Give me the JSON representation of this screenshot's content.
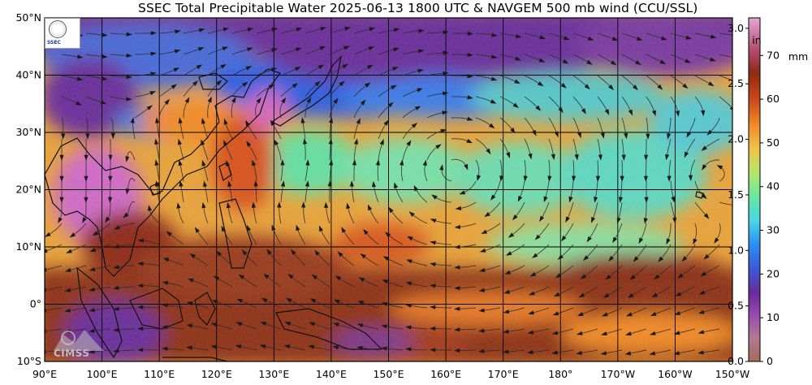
{
  "title": "SSEC Total Precipitable Water  2025-06-13 1800 UTC & NAVGEM 500 mb wind (CCU/SSL)",
  "map": {
    "lat_labels": [
      "50°N",
      "40°N",
      "30°N",
      "20°N",
      "10°N",
      "0°",
      "10°S"
    ],
    "lon_labels": [
      "90°E",
      "100°E",
      "110°E",
      "120°E",
      "130°E",
      "140°E",
      "150°E",
      "160°E",
      "170°E",
      "180°",
      "170°W",
      "160°W",
      "150°W"
    ],
    "lat_range": [
      -10,
      50
    ],
    "lon_range_east": [
      90,
      210
    ]
  },
  "colorbar": {
    "in_unit": "in",
    "mm_unit": "mm",
    "in_ticks": [
      "3.0",
      "2.5",
      "2.0",
      "1.5",
      "1.0",
      "0.5",
      "0.0"
    ],
    "mm_ticks": [
      "70",
      "60",
      "50",
      "40",
      "30",
      "20",
      "10",
      "0"
    ]
  },
  "logos": {
    "cimss": "CIMSS",
    "ssec_small": "SSEC"
  },
  "colors": {
    "dry": "#7a2f8f",
    "low": "#2f6fe0",
    "mid": "#58dca0",
    "moist": "#f3ad3c",
    "wet": "#8e3218",
    "max": "#d968c8"
  }
}
